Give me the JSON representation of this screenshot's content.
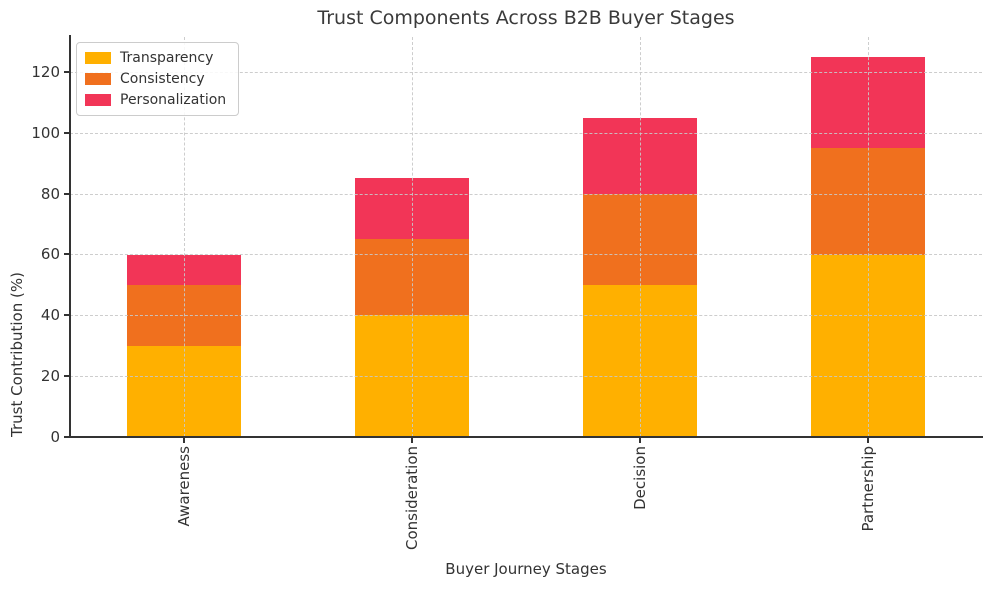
{
  "chart_data": {
    "type": "bar",
    "stacked": true,
    "title": "Trust Components Across B2B Buyer Stages",
    "xlabel": "Buyer Journey Stages",
    "ylabel": "Trust Contribution (%)",
    "categories": [
      "Awareness",
      "Consideration",
      "Decision",
      "Partnership"
    ],
    "series": [
      {
        "name": "Transparency",
        "color": "#FFB000",
        "values": [
          30,
          40,
          50,
          60
        ]
      },
      {
        "name": "Consistency",
        "color": "#F0701E",
        "values": [
          20,
          25,
          30,
          35
        ]
      },
      {
        "name": "Personalization",
        "color": "#F23557",
        "values": [
          10,
          20,
          25,
          30
        ]
      }
    ],
    "stack_totals": [
      60,
      85,
      105,
      125
    ],
    "yticks": [
      0,
      20,
      40,
      60,
      80,
      100,
      120
    ],
    "ylim": [
      0,
      131.5
    ],
    "grid": true,
    "grid_style": "dashed",
    "legend_position": "upper left",
    "text_color": "#333333",
    "background_color": "#ffffff"
  }
}
